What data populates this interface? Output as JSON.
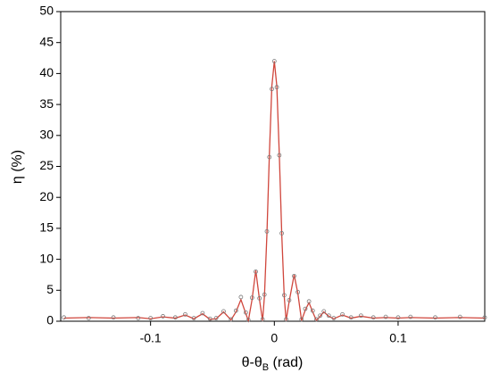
{
  "chart_data": {
    "type": "line",
    "y_label": "η (%)",
    "x_label_parts": [
      "θ-θ",
      "B",
      " (rad)"
    ],
    "x": [
      -0.17,
      -0.15,
      -0.13,
      -0.11,
      -0.1,
      -0.09,
      -0.08,
      -0.072,
      -0.065,
      -0.058,
      -0.052,
      -0.047,
      -0.041,
      -0.035,
      -0.031,
      -0.027,
      -0.023,
      -0.021,
      -0.018,
      -0.015,
      -0.012,
      -0.0095,
      -0.008,
      -0.006,
      -0.004,
      -0.002,
      0,
      0.002,
      0.004,
      0.006,
      0.008,
      0.0095,
      0.012,
      0.016,
      0.019,
      0.022,
      0.025,
      0.028,
      0.031,
      0.034,
      0.037,
      0.04,
      0.044,
      0.048,
      0.055,
      0.062,
      0.07,
      0.08,
      0.09,
      0.1,
      0.11,
      0.13,
      0.15,
      0.17
    ],
    "series": [
      {
        "mode": "line",
        "color": "#d0463c",
        "values": [
          0.5,
          0.6,
          0.5,
          0.6,
          0.4,
          0.7,
          0.5,
          1.0,
          0.4,
          1.2,
          0.3,
          0.4,
          1.5,
          0.2,
          1.5,
          3.5,
          1.2,
          0.1,
          3.5,
          8.2,
          3.5,
          0.1,
          4,
          14,
          27,
          38,
          42,
          38,
          27,
          14,
          4,
          0.1,
          3.2,
          7.5,
          4.5,
          0.1,
          1.8,
          3,
          1.5,
          0.1,
          0.8,
          1.5,
          0.8,
          0.4,
          1.0,
          0.5,
          0.8,
          0.5,
          0.6,
          0.5,
          0.6,
          0.5,
          0.6,
          0.5
        ]
      },
      {
        "mode": "markers",
        "color": "#7a7a7a",
        "values": [
          0.6,
          0.5,
          0.6,
          0.5,
          0.5,
          0.8,
          0.6,
          1.1,
          0.5,
          1.3,
          0.4,
          0.5,
          1.6,
          0.3,
          1.7,
          3.9,
          1.4,
          0.2,
          3.8,
          8.0,
          3.7,
          0.3,
          4.3,
          14.5,
          26.5,
          37.5,
          42,
          37.8,
          26.8,
          14.2,
          4.2,
          0.3,
          3.4,
          7.3,
          4.7,
          0.3,
          2.0,
          3.2,
          1.7,
          0.3,
          0.9,
          1.6,
          0.9,
          0.5,
          1.1,
          0.6,
          0.9,
          0.6,
          0.7,
          0.6,
          0.7,
          0.6,
          0.7,
          0.6
        ]
      }
    ],
    "xlim": [
      -0.1726,
      0.17
    ],
    "ylim": [
      0,
      50
    ],
    "xticks": [
      -0.1,
      0,
      0.1
    ],
    "yticks": [
      0,
      5,
      10,
      15,
      20,
      25,
      30,
      35,
      40,
      45,
      50
    ]
  }
}
